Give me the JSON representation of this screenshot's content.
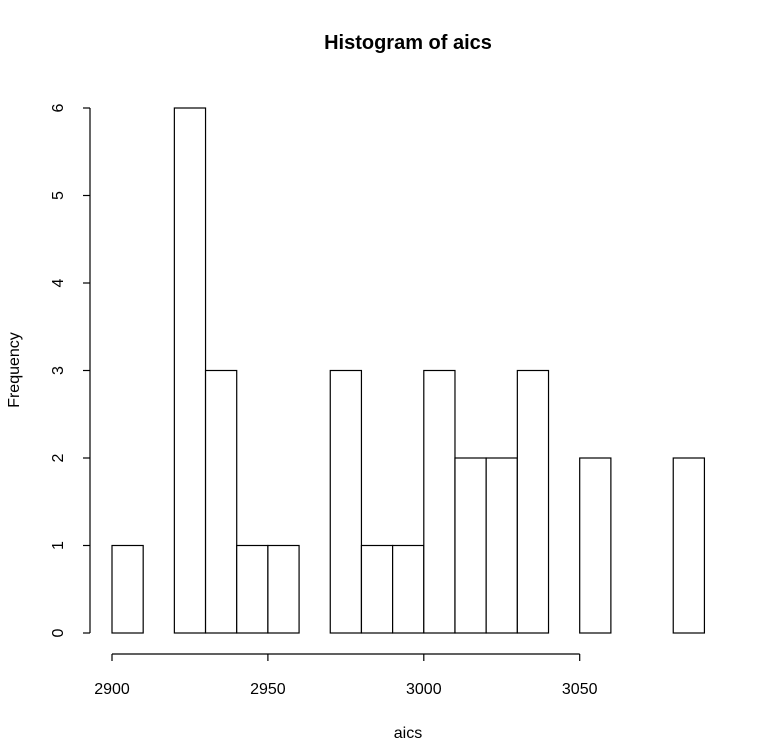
{
  "chart_data": {
    "type": "bar",
    "title": "Histogram of aics",
    "xlabel": "aics",
    "ylabel": "Frequency",
    "bin_width": 10,
    "bins": [
      {
        "start": 2900,
        "end": 2910,
        "count": 1
      },
      {
        "start": 2910,
        "end": 2920,
        "count": 0
      },
      {
        "start": 2920,
        "end": 2930,
        "count": 6
      },
      {
        "start": 2930,
        "end": 2940,
        "count": 3
      },
      {
        "start": 2940,
        "end": 2950,
        "count": 1
      },
      {
        "start": 2950,
        "end": 2960,
        "count": 1
      },
      {
        "start": 2960,
        "end": 2970,
        "count": 0
      },
      {
        "start": 2970,
        "end": 2980,
        "count": 3
      },
      {
        "start": 2980,
        "end": 2990,
        "count": 1
      },
      {
        "start": 2990,
        "end": 3000,
        "count": 1
      },
      {
        "start": 3000,
        "end": 3010,
        "count": 3
      },
      {
        "start": 3010,
        "end": 3020,
        "count": 2
      },
      {
        "start": 3020,
        "end": 3030,
        "count": 2
      },
      {
        "start": 3030,
        "end": 3040,
        "count": 3
      },
      {
        "start": 3040,
        "end": 3050,
        "count": 0
      },
      {
        "start": 3050,
        "end": 3060,
        "count": 2
      },
      {
        "start": 3060,
        "end": 3070,
        "count": 0
      },
      {
        "start": 3070,
        "end": 3080,
        "count": 0
      },
      {
        "start": 3080,
        "end": 3090,
        "count": 2
      }
    ],
    "xlim": [
      2900,
      3090
    ],
    "ylim": [
      0,
      6
    ],
    "x_ticks": [
      2900,
      2950,
      3000,
      3050
    ],
    "y_ticks": [
      0,
      1,
      2,
      3,
      4,
      5,
      6
    ],
    "grid": false,
    "legend": "none"
  }
}
